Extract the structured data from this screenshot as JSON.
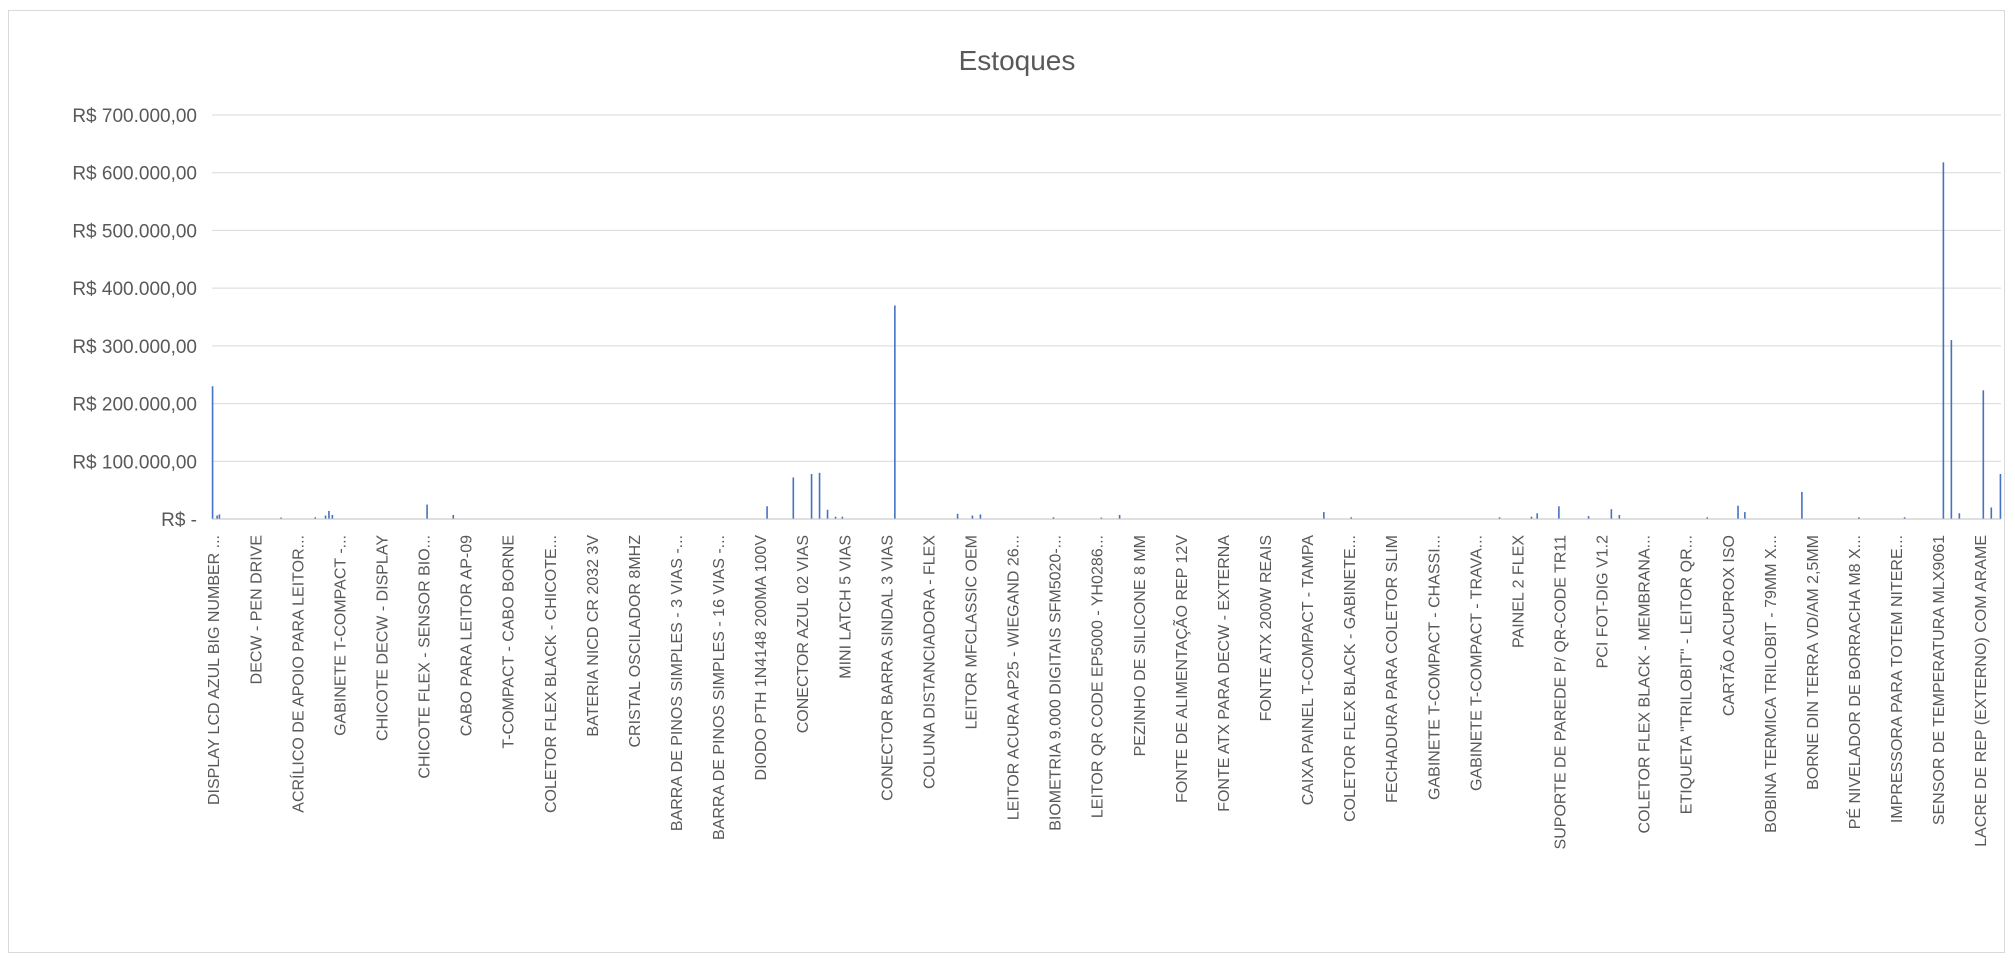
{
  "chart_data": {
    "type": "bar",
    "title": "Estoques",
    "xlabel": "",
    "ylabel": "",
    "ylim": [
      0,
      700000
    ],
    "grid": true,
    "legend": "none",
    "bar_color": "#4472c4",
    "y_ticks": [
      {
        "value": 0,
        "label": "R$ -"
      },
      {
        "value": 100000,
        "label": "R$ 100.000,00"
      },
      {
        "value": 200000,
        "label": "R$ 200.000,00"
      },
      {
        "value": 300000,
        "label": "R$ 300.000,00"
      },
      {
        "value": 400000,
        "label": "R$ 400.000,00"
      },
      {
        "value": 500000,
        "label": "R$ 500.000,00"
      },
      {
        "value": 600000,
        "label": "R$ 600.000,00"
      },
      {
        "value": 700000,
        "label": "R$ 700.000,00"
      }
    ],
    "category_labels": [
      "DISPLAY LCD AZUL BIG NUMBER ...",
      "DECW - PEN DRIVE",
      "ACRÍLICO DE APOIO PARA LEITOR...",
      "GABINETE T-COMPACT -...",
      "CHICOTE DECW - DISPLAY",
      "CHICOTE FLEX - SENSOR BIO...",
      "CABO PARA LEITOR AP-09",
      "T-COMPACT - CABO BORNE",
      "COLETOR FLEX BLACK - CHICOTE...",
      "BATERIA NICD CR 2032 3V",
      "CRISTAL OSCILADOR 8MHZ",
      "BARRA DE PINOS SIMPLES - 3 VIAS -...",
      "BARRA DE PINOS SIMPLES - 16 VIAS -...",
      "DIODO PTH 1N4148 200MA 100V",
      "CONECTOR AZUL 02 VIAS",
      "MINI LATCH 5 VIAS",
      "CONECTOR BARRA SINDAL 3 VIAS",
      "COLUNA DISTANCIADORA - FLEX",
      "LEITOR MFCLASSIC OEM",
      "LEITOR ACURA AP25 - WIEGAND 26...",
      "BIOMETRIA 9.000 DIGITAIS SFM5020-...",
      "LEITOR QR CODE EP5000 - YH0286...",
      "PEZINHO DE SILICONE 8 MM",
      "FONTE DE ALIMENTAÇÃO REP 12V",
      "FONTE ATX PARA DECW - EXTERNA",
      "FONTE ATX 200W REAIS",
      "CAIXA PAINEL T-COMPACT - TAMPA",
      "COLETOR FLEX BLACK - GABINETE...",
      "FECHADURA PARA COLETOR SLIM",
      "GABINETE T-COMPACT - CHASSI...",
      "GABINETE T-COMPACT - TRAVA...",
      "PAINEL 2 FLEX",
      "SUPORTE DE PAREDE P/ QR-CODE TR11",
      "PCI FOT-DIG V1.2",
      "COLETOR FLEX BLACK - MEMBRANA...",
      "ETIQUETA \"TRILOBIT\" - LEITOR QR...",
      "CARTÃO ACUPROX ISO",
      "BOBINA TERMICA TRILOBIT - 79MM X...",
      "BORNE DIN TERRA VD/AM 2,5MM",
      "PÉ NIVELADOR DE BORRACHA M8 X...",
      "IMPRESSORA PARA TOTEM NITERE...",
      "SENSOR DE TEMPERATURA MLX9061",
      "LACRE DE REP (EXTERNO) COM ARAME"
    ],
    "values": [
      230000,
      0,
      0,
      0,
      6000,
      0,
      8000,
      0,
      0,
      0,
      0,
      0,
      0,
      0,
      0,
      0,
      0,
      0,
      0,
      0,
      0,
      0,
      0,
      0,
      0,
      0,
      0,
      0,
      0,
      0,
      0,
      0,
      0,
      0,
      0,
      0,
      0,
      0,
      0,
      0,
      0,
      0,
      0,
      0,
      0,
      0,
      0,
      0,
      0,
      0,
      0,
      0,
      0,
      0,
      0,
      0,
      0,
      0,
      0,
      0,
      2500,
      0,
      0,
      0,
      0,
      0,
      0,
      0,
      0,
      0,
      0,
      0,
      0,
      0,
      0,
      0,
      0,
      0,
      0,
      0,
      0,
      0,
      0,
      0,
      0,
      0,
      0,
      0,
      0,
      0,
      3000,
      0,
      0,
      0,
      0,
      0,
      0,
      0,
      0,
      6000,
      0,
      0,
      14000,
      0,
      0,
      7000,
      0,
      0,
      0,
      0,
      0,
      0,
      0,
      0,
      0,
      0,
      0,
      0,
      0,
      0,
      0,
      0,
      0,
      0,
      0,
      0,
      0,
      0,
      0,
      0,
      0,
      0,
      0,
      0,
      0,
      0,
      0,
      0,
      0,
      0,
      0,
      0,
      0,
      0,
      0,
      0,
      0,
      0,
      0,
      0,
      0,
      0,
      0,
      0,
      0,
      0,
      0,
      0,
      0,
      0,
      0,
      0,
      0,
      0,
      0,
      0,
      0,
      0,
      0,
      0,
      0,
      0,
      0,
      0,
      0,
      0,
      0,
      0,
      0,
      0,
      0,
      0,
      0,
      0,
      0,
      0,
      0,
      0,
      25000,
      0,
      0,
      0,
      0,
      0,
      0,
      0,
      0,
      0,
      0,
      0,
      0,
      0,
      0,
      0,
      0,
      0,
      0,
      0,
      0,
      0,
      0,
      7000,
      0,
      0,
      0,
      0,
      0,
      0,
      0,
      0,
      0,
      0,
      0,
      0,
      0,
      0,
      0,
      0,
      0,
      0,
      0,
      0,
      0,
      0,
      0,
      0,
      0,
      0,
      0,
      0,
      0,
      0,
      0,
      0,
      0,
      0,
      0,
      0,
      0,
      0,
      0,
      0,
      0,
      0,
      0,
      0,
      0,
      0,
      0,
      0,
      0,
      0,
      0,
      0,
      0,
      0,
      0,
      0,
      0,
      0,
      0,
      0,
      0,
      0,
      0,
      0,
      0,
      0,
      0,
      0,
      0,
      0,
      0,
      0,
      0,
      0,
      0,
      0,
      0,
      0,
      0,
      0,
      0,
      0,
      0,
      0,
      0,
      0,
      0,
      0,
      0,
      0,
      0,
      0,
      0,
      0,
      0,
      0,
      0,
      0,
      0,
      0,
      0,
      0,
      0,
      0,
      0,
      0,
      0,
      0,
      0,
      0,
      0,
      0,
      0,
      0,
      0,
      0,
      0,
      0,
      0,
      0,
      0,
      0,
      0,
      0,
      0,
      0,
      0,
      0,
      0,
      0,
      0,
      0,
      0,
      0,
      0,
      0,
      0,
      0,
      0,
      0,
      0,
      0,
      0,
      0,
      0,
      0,
      0,
      0,
      0,
      0,
      0,
      0,
      0,
      0,
      0,
      0,
      0,
      0,
      0,
      0,
      0,
      0,
      0,
      0,
      0,
      0,
      0,
      0,
      0,
      0,
      0,
      0,
      0,
      0,
      0,
      0,
      0,
      0,
      0,
      0,
      0,
      0,
      0,
      0,
      0,
      0,
      0,
      0,
      0,
      0,
      0,
      0,
      0,
      0,
      0,
      0,
      0,
      0,
      0,
      0,
      0,
      0,
      0,
      0,
      0,
      0,
      0,
      0,
      0,
      0,
      0,
      0,
      0,
      0,
      0,
      0,
      0,
      0,
      0,
      0,
      0,
      0,
      0,
      0,
      0,
      0,
      0,
      0,
      0,
      0,
      0,
      0,
      0,
      0,
      0,
      0,
      0,
      0,
      0,
      0,
      0,
      0,
      0,
      0,
      0,
      0,
      0,
      0,
      0,
      0,
      0,
      0,
      0,
      0,
      0,
      0,
      0,
      0,
      0,
      0,
      0,
      0,
      0,
      0,
      0,
      0,
      0,
      0,
      0,
      0,
      0,
      0,
      0,
      0,
      22000,
      0,
      0,
      0,
      0,
      0,
      0,
      0,
      0,
      0,
      0,
      0,
      0,
      0,
      0,
      0,
      0,
      0,
      0,
      0,
      0,
      0,
      0,
      72000,
      0,
      0,
      0,
      0,
      0,
      0,
      0,
      0,
      0,
      0,
      0,
      0,
      0,
      0,
      0,
      78000,
      0,
      0,
      0,
      0,
      0,
      0,
      80000,
      0,
      0,
      0,
      0,
      0,
      0,
      16000,
      0,
      0,
      0,
      0,
      0,
      0,
      4000,
      0,
      0,
      0,
      0,
      0,
      4000,
      0,
      0,
      0,
      0,
      0,
      0,
      0,
      0,
      0,
      0,
      0,
      0,
      0,
      0,
      0,
      0,
      0,
      0,
      0,
      0,
      0,
      0,
      0,
      0,
      0,
      0,
      0,
      0,
      0,
      0,
      0,
      0,
      0,
      0,
      0,
      0,
      0,
      0,
      0,
      0,
      0,
      0,
      0,
      0,
      0,
      370000,
      0,
      0,
      0,
      0,
      0,
      0,
      0,
      0,
      0,
      0,
      0,
      0,
      0,
      0,
      0,
      0,
      0,
      0,
      0,
      0,
      0,
      0,
      0,
      0,
      0,
      0,
      0,
      0,
      0,
      0,
      0,
      0,
      0,
      0,
      0,
      0,
      0,
      0,
      0,
      0,
      0,
      0,
      0,
      0,
      0,
      0,
      0,
      0,
      0,
      0,
      0,
      0,
      0,
      0,
      9000,
      0,
      0,
      0,
      0,
      0,
      0,
      0,
      0,
      0,
      0,
      0,
      0,
      6000,
      0,
      0,
      0,
      0,
      0,
      0,
      8000,
      0,
      0,
      0,
      0,
      0,
      0,
      0,
      0,
      0,
      0,
      0,
      0,
      0,
      0,
      0,
      0,
      0,
      0,
      0,
      0,
      0,
      0,
      0,
      0,
      0,
      0,
      0,
      0,
      0,
      0,
      0,
      0,
      0,
      0,
      0,
      0,
      0,
      0,
      0,
      0,
      0,
      0,
      0,
      0,
      0,
      0,
      0,
      0,
      0,
      0,
      0,
      0,
      0,
      0,
      0,
      0,
      0,
      0,
      0,
      0,
      0,
      0,
      0,
      3000,
      0,
      0,
      0,
      0,
      0,
      0,
      0,
      0,
      0,
      0,
      0,
      0,
      0,
      0,
      0,
      0,
      0,
      0,
      0,
      0,
      0,
      0,
      0,
      0,
      0,
      0,
      0,
      0,
      0,
      0,
      0,
      0,
      0,
      0,
      0,
      0,
      0,
      0,
      0,
      0,
      0,
      2500,
      0,
      0,
      0,
      0,
      0,
      0,
      0,
      0,
      0,
      0,
      0,
      0,
      0,
      0,
      0,
      7000,
      0,
      0,
      0,
      0,
      0,
      0,
      0,
      0,
      0,
      0,
      0,
      0,
      0,
      0,
      0,
      0,
      0,
      0,
      0,
      0,
      0,
      0,
      0,
      0,
      0,
      0,
      0,
      0,
      0,
      0,
      0,
      0,
      0,
      0,
      0,
      0,
      0,
      0,
      0,
      0,
      0,
      0,
      0,
      0,
      0,
      0,
      0,
      0,
      0,
      0,
      0,
      0,
      0,
      0,
      0,
      0,
      0,
      0,
      0,
      0,
      0,
      0,
      0,
      0,
      0,
      0,
      0,
      0,
      0,
      0,
      0,
      0,
      0,
      0,
      0,
      0,
      0,
      0,
      0,
      0,
      0,
      0,
      0,
      0,
      0,
      0,
      0,
      0,
      0,
      0,
      0,
      0,
      0,
      0,
      0,
      0,
      0,
      0,
      0,
      0,
      0,
      0,
      0,
      0,
      0,
      0,
      0,
      0,
      0,
      0,
      0,
      0,
      0,
      0,
      0,
      0,
      0,
      0,
      0,
      0,
      0,
      0,
      0,
      0,
      0,
      0,
      0,
      0,
      0,
      0,
      0,
      0,
      0,
      0,
      0,
      0,
      0,
      0,
      0,
      0,
      0,
      0,
      0,
      0,
      0,
      0,
      0,
      0,
      0,
      0,
      0,
      0,
      0,
      0,
      0,
      0,
      0,
      0,
      0,
      0,
      0,
      0,
      0,
      0,
      0,
      0,
      0,
      0,
      0,
      0,
      0,
      0,
      0,
      0,
      0,
      0,
      0,
      0,
      12000,
      0,
      0,
      0,
      0,
      0,
      0,
      0,
      0,
      0,
      0,
      0,
      0,
      0,
      0,
      0,
      0,
      0,
      0,
      0,
      0,
      0,
      0,
      0,
      3000,
      0,
      0,
      0,
      0,
      0,
      0,
      0,
      0,
      0,
      0,
      0,
      0,
      0,
      0,
      0,
      0,
      0,
      0,
      0,
      0,
      0,
      0,
      0,
      0,
      0,
      0,
      0,
      0,
      0,
      0,
      0,
      0,
      0,
      0,
      0,
      0,
      0,
      0,
      0,
      0,
      0,
      0,
      0,
      0,
      0,
      0,
      0,
      0,
      0,
      0,
      0,
      0,
      0,
      0,
      0,
      0,
      0,
      0,
      0,
      0,
      0,
      0,
      0,
      0,
      0,
      0,
      0,
      0,
      0,
      0,
      0,
      0,
      0,
      0,
      0,
      0,
      0,
      0,
      0,
      0,
      0,
      0,
      0,
      0,
      0,
      0,
      0,
      0,
      0,
      0,
      0,
      0,
      0,
      0,
      0,
      0,
      0,
      0,
      0,
      0,
      0,
      0,
      0,
      0,
      0,
      0,
      0,
      0,
      0,
      0,
      0,
      0,
      0,
      0,
      0,
      0,
      0,
      0,
      0,
      0,
      0,
      0,
      0,
      0,
      0,
      0,
      0,
      0,
      0,
      3000,
      0,
      0,
      0,
      0,
      0,
      0,
      0,
      0,
      0,
      0,
      0,
      0,
      0,
      0,
      0,
      0,
      0,
      0,
      0,
      0,
      0,
      0,
      0,
      0,
      0,
      0,
      0,
      4000,
      0,
      0,
      0,
      0,
      10000,
      0,
      0,
      0,
      0,
      0,
      0,
      0,
      0,
      0,
      0,
      0,
      0,
      0,
      0,
      0,
      0,
      0,
      0,
      22000,
      0,
      0,
      0,
      0,
      0,
      0,
      0,
      0,
      0,
      0,
      0,
      0,
      0,
      0,
      0,
      0,
      0,
      0,
      0,
      0,
      0,
      0,
      0,
      0,
      0,
      5000,
      0,
      0,
      0,
      0,
      0,
      0,
      0,
      0,
      0,
      0,
      0,
      0,
      0,
      0,
      0,
      0,
      0,
      0,
      0,
      17000,
      0,
      0,
      0,
      0,
      0,
      0,
      7000,
      0,
      0,
      0,
      0,
      0,
      0,
      0,
      0,
      0,
      0,
      0,
      0,
      0,
      0,
      0,
      0,
      0,
      0,
      0,
      0,
      0,
      0,
      0,
      0,
      0,
      0,
      0,
      0,
      0,
      0,
      0,
      0,
      0,
      0,
      0,
      0,
      0,
      0,
      0,
      0,
      0,
      0,
      0,
      0,
      0,
      0,
      0,
      0,
      0,
      0,
      0,
      0,
      0,
      0,
      0,
      0,
      0,
      0,
      0,
      0,
      0,
      0,
      0,
      0,
      0,
      0,
      0,
      0,
      0,
      0,
      0,
      0,
      0,
      0,
      0,
      0,
      3000,
      0,
      0,
      0,
      0,
      0,
      0,
      0,
      0,
      0,
      0,
      0,
      0,
      0,
      0,
      0,
      0,
      0,
      0,
      0,
      0,
      0,
      0,
      0,
      0,
      0,
      0,
      23000,
      0,
      0,
      0,
      0,
      0,
      12000,
      0,
      0,
      0,
      0,
      0,
      0,
      0,
      0,
      0,
      0,
      0,
      0,
      0,
      0,
      0,
      0,
      0,
      0,
      0,
      0,
      0,
      0,
      0,
      0,
      0,
      0,
      0,
      0,
      0,
      0,
      0,
      0,
      0,
      0,
      0,
      0,
      0,
      0,
      0,
      0,
      0,
      0,
      0,
      0,
      0,
      0,
      0,
      0,
      0,
      47000,
      0,
      0,
      0,
      0,
      0,
      0,
      0,
      0,
      0,
      0,
      0,
      0,
      0,
      0,
      0,
      0,
      0,
      0,
      0,
      0,
      0,
      0,
      0,
      0,
      0,
      0,
      0,
      0,
      0,
      0,
      0,
      0,
      0,
      0,
      0,
      0,
      0,
      0,
      0,
      0,
      0,
      0,
      0,
      0,
      0,
      0,
      0,
      0,
      0,
      3000,
      0,
      0,
      0,
      0,
      0,
      0,
      0,
      0,
      0,
      0,
      0,
      0,
      0,
      0,
      0,
      0,
      0,
      0,
      0,
      0,
      0,
      0,
      0,
      0,
      0,
      0,
      0,
      0,
      0,
      0,
      0,
      0,
      0,
      0,
      0,
      0,
      0,
      0,
      0,
      3000,
      0,
      0,
      0,
      0,
      0,
      0,
      0,
      0,
      0,
      0,
      0,
      0,
      0,
      0,
      0,
      0,
      0,
      0,
      0,
      0,
      0,
      0,
      0,
      0,
      0,
      0,
      0,
      0,
      0,
      0,
      0,
      0,
      0,
      618000,
      0,
      0,
      0,
      0,
      0,
      0,
      310000,
      0,
      0,
      0,
      0,
      0,
      0,
      10000,
      0,
      0,
      0,
      0,
      0,
      0,
      0,
      0,
      0,
      0,
      0,
      0,
      0,
      0,
      0,
      0,
      0,
      0,
      0,
      0,
      223000,
      0,
      0,
      0,
      0,
      0,
      0,
      20000,
      0,
      0,
      0,
      0,
      0,
      0,
      0,
      78000
    ]
  }
}
